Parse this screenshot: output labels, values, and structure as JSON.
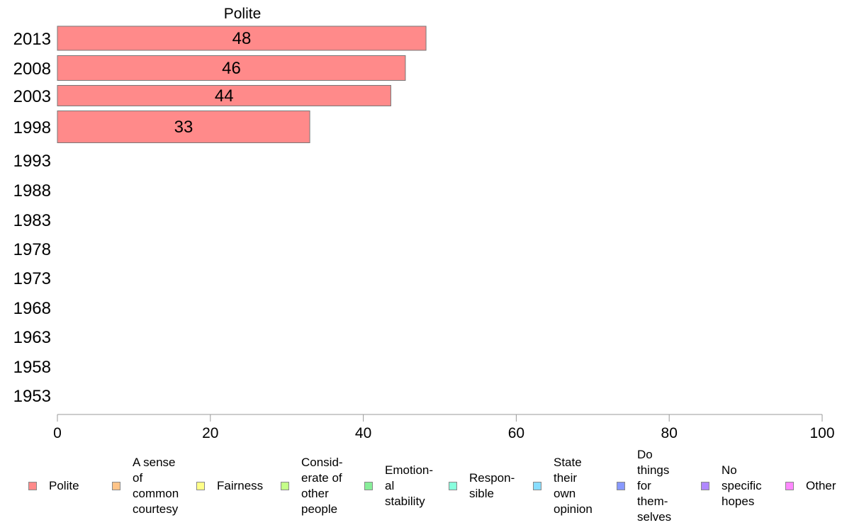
{
  "chart_data": {
    "type": "bar",
    "orientation": "horizontal",
    "title": "Polite",
    "categories": [
      "2013",
      "2008",
      "2003",
      "1998",
      "1993",
      "1988",
      "1983",
      "1978",
      "1973",
      "1968",
      "1963",
      "1958",
      "1953"
    ],
    "series": [
      {
        "name": "Polite",
        "values": [
          48.2,
          45.5,
          43.6,
          33,
          null,
          null,
          null,
          null,
          null,
          null,
          null,
          null,
          null
        ],
        "labels": [
          "48",
          "46",
          "44",
          "33",
          "",
          "",
          "",
          "",
          "",
          "",
          "",
          "",
          ""
        ]
      }
    ],
    "xlim": [
      0,
      100
    ],
    "xticks": [
      0,
      20,
      40,
      60,
      80,
      100
    ],
    "xlabel": "",
    "ylabel": "",
    "grid": false,
    "legend_position": "bottom",
    "bar_color": "#ff8a8a"
  },
  "legend": [
    {
      "label": "Polite",
      "color": "#ff8a8a"
    },
    {
      "label": "A sense\nof\ncommon\ncourtesy",
      "color": "#ffc488"
    },
    {
      "label": "Fairness",
      "color": "#ffff88"
    },
    {
      "label": "Consid-\nerate of\nother\npeople",
      "color": "#c4ff88"
    },
    {
      "label": "Emotion-\nal\nstability",
      "color": "#88ee99"
    },
    {
      "label": "Respon-\nsible",
      "color": "#88ffdd"
    },
    {
      "label": "State\ntheir\nown\nopinion",
      "color": "#88ddff"
    },
    {
      "label": "Do\nthings\nfor\nthem-\nselves",
      "color": "#8899ff"
    },
    {
      "label": "No\nspecific\nhopes",
      "color": "#b088ff"
    },
    {
      "label": "Other",
      "color": "#ff88ff"
    }
  ]
}
